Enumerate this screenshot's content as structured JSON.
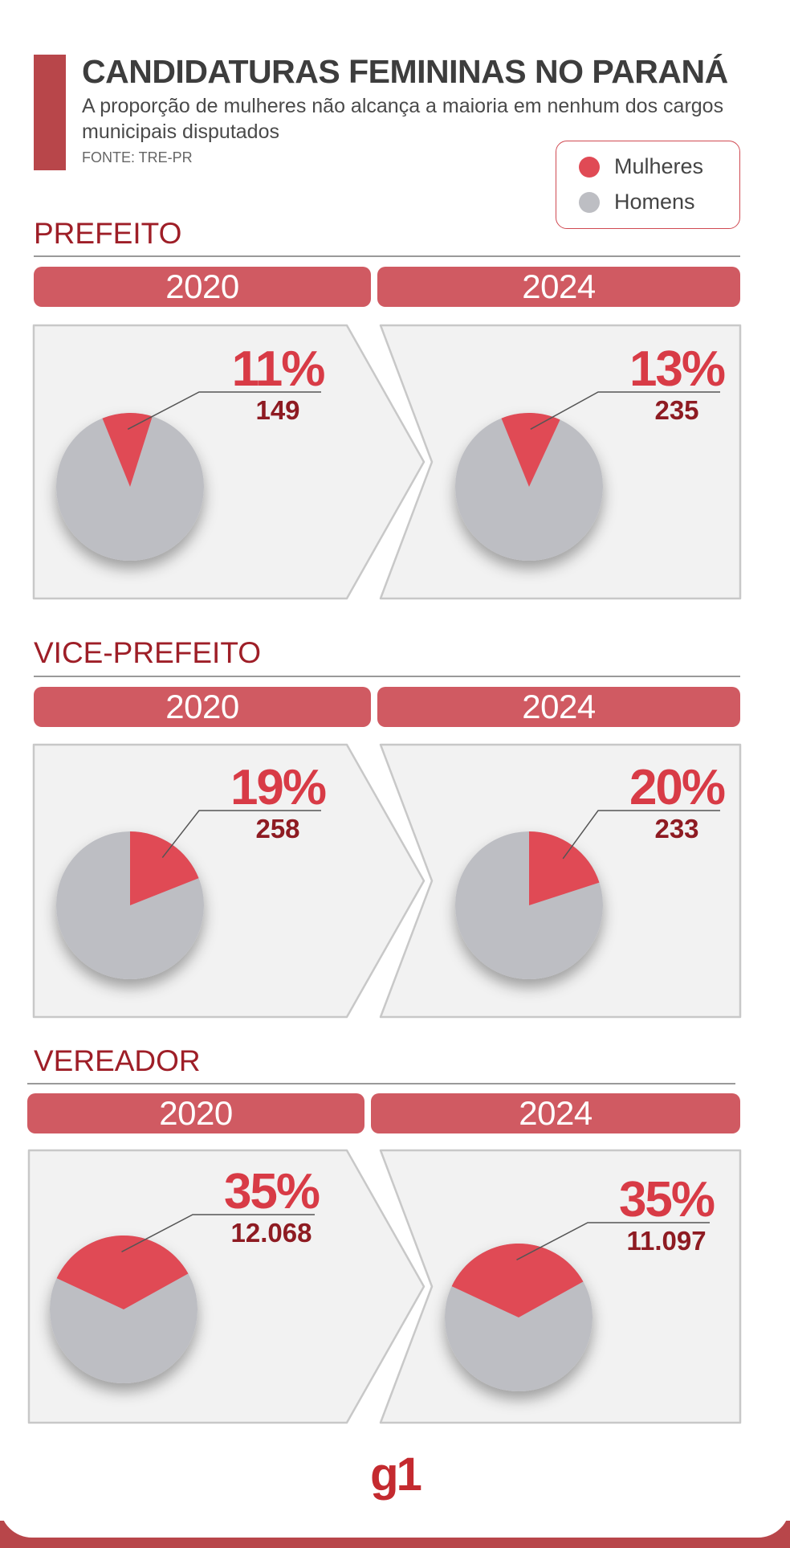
{
  "header": {
    "title": "CANDIDATURAS FEMININAS NO PARANÁ",
    "subtitle": "A proporção de mulheres não alcança a maioria em nenhum dos cargos municipais disputados",
    "source": "FONTE: TRE-PR"
  },
  "legend": {
    "items": [
      {
        "label": "Mulheres",
        "color": "#e04a55"
      },
      {
        "label": "Homens",
        "color": "#bdbec3"
      }
    ]
  },
  "colors": {
    "women": "#e04a55",
    "men": "#bdbec3",
    "pill": "#d05a62",
    "section_title": "#9e1e27",
    "percent_text": "#d83b46",
    "count_text": "#8e1b22",
    "panel_bg": "#f2f2f2",
    "panel_border": "#c8c8c8"
  },
  "sections": [
    {
      "title": "PREFEITO",
      "years": [
        "2020",
        "2024"
      ]
    },
    {
      "title": "VICE-PREFEITO",
      "years": [
        "2020",
        "2024"
      ]
    },
    {
      "title": "VEREADOR",
      "years": [
        "2020",
        "2024"
      ]
    }
  ],
  "chart_data": [
    {
      "type": "pie",
      "title": "PREFEITO",
      "subtitle": "2020",
      "slices": [
        {
          "label": "Mulheres",
          "value": 11
        },
        {
          "label": "Homens",
          "value": 89
        }
      ],
      "percent_label": "11%",
      "count_label": "149"
    },
    {
      "type": "pie",
      "title": "PREFEITO",
      "subtitle": "2024",
      "slices": [
        {
          "label": "Mulheres",
          "value": 13
        },
        {
          "label": "Homens",
          "value": 87
        }
      ],
      "percent_label": "13%",
      "count_label": "235"
    },
    {
      "type": "pie",
      "title": "VICE-PREFEITO",
      "subtitle": "2020",
      "slices": [
        {
          "label": "Mulheres",
          "value": 19
        },
        {
          "label": "Homens",
          "value": 81
        }
      ],
      "percent_label": "19%",
      "count_label": "258"
    },
    {
      "type": "pie",
      "title": "VICE-PREFEITO",
      "subtitle": "2024",
      "slices": [
        {
          "label": "Mulheres",
          "value": 20
        },
        {
          "label": "Homens",
          "value": 80
        }
      ],
      "percent_label": "20%",
      "count_label": "233"
    },
    {
      "type": "pie",
      "title": "VEREADOR",
      "subtitle": "2020",
      "slices": [
        {
          "label": "Mulheres",
          "value": 35
        },
        {
          "label": "Homens",
          "value": 65
        }
      ],
      "percent_label": "35%",
      "count_label": "12.068"
    },
    {
      "type": "pie",
      "title": "VEREADOR",
      "subtitle": "2024",
      "slices": [
        {
          "label": "Mulheres",
          "value": 35
        },
        {
          "label": "Homens",
          "value": 65
        }
      ],
      "percent_label": "35%",
      "count_label": "11.097"
    }
  ],
  "brand": {
    "logo_text": "g1"
  }
}
